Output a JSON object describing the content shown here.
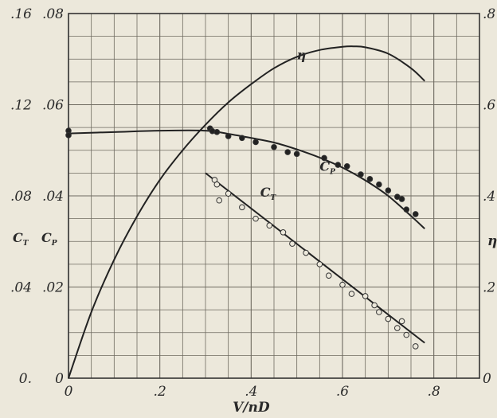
{
  "chart_data": {
    "type": "line",
    "xlabel": "V/nD",
    "x_ticks": [
      {
        "v": 0,
        "t": "0"
      },
      {
        "v": 0.2,
        "t": ".2"
      },
      {
        "v": 0.4,
        "t": ".4"
      },
      {
        "v": 0.6,
        "t": ".6"
      },
      {
        "v": 0.8,
        "t": ".8"
      }
    ],
    "xlim": [
      0,
      0.9
    ],
    "y_axis_cp": {
      "label": "C_P",
      "range": [
        0,
        0.08
      ],
      "ticks": [
        {
          "v": 0,
          "t": "0"
        },
        {
          "v": 0.02,
          "t": ".02"
        },
        {
          "v": 0.04,
          "t": ".04"
        },
        {
          "v": 0.06,
          "t": ".06"
        },
        {
          "v": 0.08,
          "t": ".08"
        }
      ]
    },
    "y_axis_ct": {
      "label": "C_T",
      "range": [
        0,
        0.16
      ],
      "ticks": [
        {
          "v": 0,
          "t": "0."
        },
        {
          "v": 0.04,
          "t": ".04"
        },
        {
          "v": 0.08,
          "t": ".08"
        },
        {
          "v": 0.12,
          "t": ".12"
        },
        {
          "v": 0.16,
          "t": ".16"
        }
      ]
    },
    "y_axis_eta": {
      "label": "η",
      "range": [
        0,
        0.8
      ],
      "ticks": [
        {
          "v": 0,
          "t": "0"
        },
        {
          "v": 0.2,
          "t": ".2"
        },
        {
          "v": 0.4,
          "t": ".4"
        },
        {
          "v": 0.6,
          "t": ".6"
        },
        {
          "v": 0.8,
          "t": ".8"
        }
      ]
    },
    "grid": true,
    "series": [
      {
        "name": "η",
        "axis": "eta",
        "kind": "curve",
        "color": "#222222",
        "x": [
          0.0,
          0.05,
          0.1,
          0.15,
          0.2,
          0.25,
          0.3,
          0.35,
          0.4,
          0.45,
          0.5,
          0.55,
          0.6,
          0.625,
          0.65,
          0.7,
          0.75,
          0.78
        ],
        "values": [
          0.0,
          0.145,
          0.26,
          0.355,
          0.435,
          0.5,
          0.556,
          0.605,
          0.645,
          0.68,
          0.705,
          0.72,
          0.727,
          0.728,
          0.726,
          0.712,
          0.68,
          0.652
        ]
      },
      {
        "name": "C_P",
        "axis": "cp",
        "kind": "curve",
        "color": "#222222",
        "x": [
          0.0,
          0.1,
          0.2,
          0.3,
          0.35,
          0.4,
          0.45,
          0.5,
          0.55,
          0.6,
          0.65,
          0.7,
          0.75,
          0.78
        ],
        "values": [
          0.0537,
          0.054,
          0.0543,
          0.0543,
          0.0536,
          0.0527,
          0.0517,
          0.0502,
          0.0484,
          0.0462,
          0.0434,
          0.04,
          0.0356,
          0.0328
        ]
      },
      {
        "name": "C_P",
        "axis": "cp",
        "kind": "points",
        "marker": "filled",
        "x": [
          0.0,
          0.0,
          0.31,
          0.315,
          0.325,
          0.35,
          0.38,
          0.41,
          0.45,
          0.48,
          0.5,
          0.56,
          0.59,
          0.61,
          0.64,
          0.66,
          0.68,
          0.7,
          0.72,
          0.73,
          0.74,
          0.76
        ],
        "values": [
          0.0543,
          0.0533,
          0.0548,
          0.0542,
          0.054,
          0.0531,
          0.0527,
          0.0518,
          0.0507,
          0.0496,
          0.0492,
          0.0483,
          0.0468,
          0.0465,
          0.0447,
          0.0437,
          0.0425,
          0.0412,
          0.0398,
          0.0393,
          0.037,
          0.036
        ]
      },
      {
        "name": "C_T",
        "axis": "ct",
        "kind": "curve",
        "color": "#222222",
        "x": [
          0.3,
          0.78
        ],
        "values": [
          0.09,
          0.0155
        ]
      },
      {
        "name": "C_T",
        "axis": "ct",
        "kind": "points",
        "marker": "open",
        "x": [
          0.32,
          0.325,
          0.33,
          0.35,
          0.38,
          0.41,
          0.44,
          0.47,
          0.49,
          0.52,
          0.55,
          0.57,
          0.6,
          0.62,
          0.65,
          0.67,
          0.68,
          0.7,
          0.72,
          0.73,
          0.74,
          0.76
        ],
        "values": [
          0.087,
          0.085,
          0.078,
          0.081,
          0.075,
          0.07,
          0.067,
          0.064,
          0.059,
          0.055,
          0.05,
          0.045,
          0.041,
          0.037,
          0.036,
          0.032,
          0.029,
          0.026,
          0.022,
          0.025,
          0.019,
          0.014
        ]
      }
    ],
    "annotations": [
      {
        "text": "η",
        "x": 0.5,
        "y": 0.7,
        "axis": "eta"
      },
      {
        "text": "C",
        "sub": "P",
        "x": 0.55,
        "y": 0.0455,
        "axis": "cp"
      },
      {
        "text": "C",
        "sub": "T",
        "x": 0.42,
        "y": 0.0398,
        "axis": "cp"
      }
    ]
  }
}
